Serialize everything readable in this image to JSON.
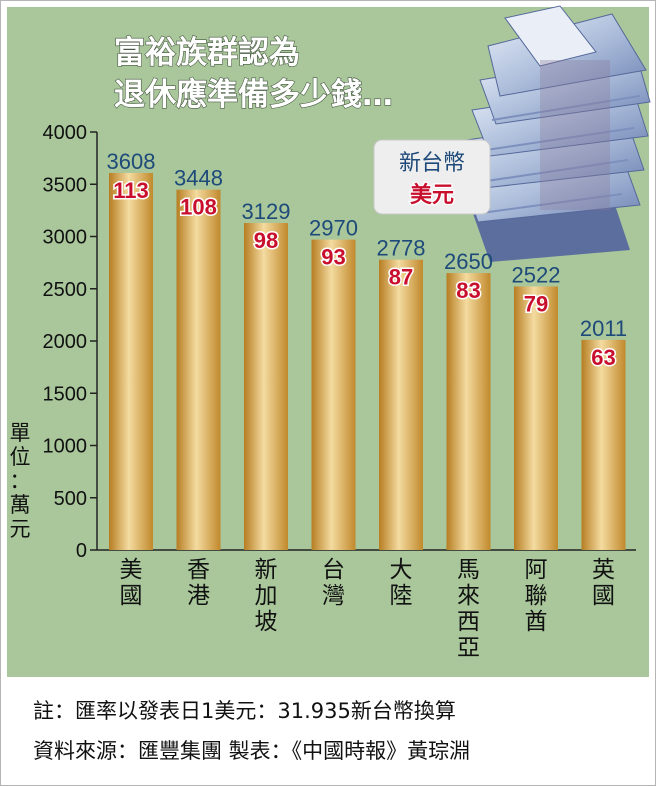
{
  "title_lines": [
    "富裕族群認為",
    "退休應準備多少錢…"
  ],
  "legend": {
    "twd_label": "新台幣",
    "usd_label": "美元"
  },
  "unit_label": "單位：萬元",
  "notes": {
    "line1": "註：匯率以發表日1美元：31.935新台幣換算",
    "line2": "資料來源：匯豐集團  製表：《中國時報》黃琮淵"
  },
  "colors": {
    "panel": "#a9c79b",
    "bar_light": "#f2d79a",
    "bar_dark": "#c1892c",
    "twd_text": "#1e4a7a",
    "usd_text": "#c8102e"
  },
  "chart_data": {
    "type": "bar",
    "categories": [
      "美國",
      "香港",
      "新加坡",
      "台灣",
      "大陸",
      "馬來西亞",
      "阿聯酋",
      "英國"
    ],
    "series": [
      {
        "name": "新台幣",
        "values": [
          3608,
          3448,
          3129,
          2970,
          2778,
          2650,
          2522,
          2011
        ]
      },
      {
        "name": "美元",
        "values": [
          113,
          108,
          98,
          93,
          87,
          83,
          79,
          63
        ]
      }
    ],
    "ylim": [
      0,
      4000
    ],
    "yticks": [
      0,
      500,
      1000,
      1500,
      2000,
      2500,
      3000,
      3500,
      4000
    ],
    "ylabel": "單位：萬元"
  }
}
